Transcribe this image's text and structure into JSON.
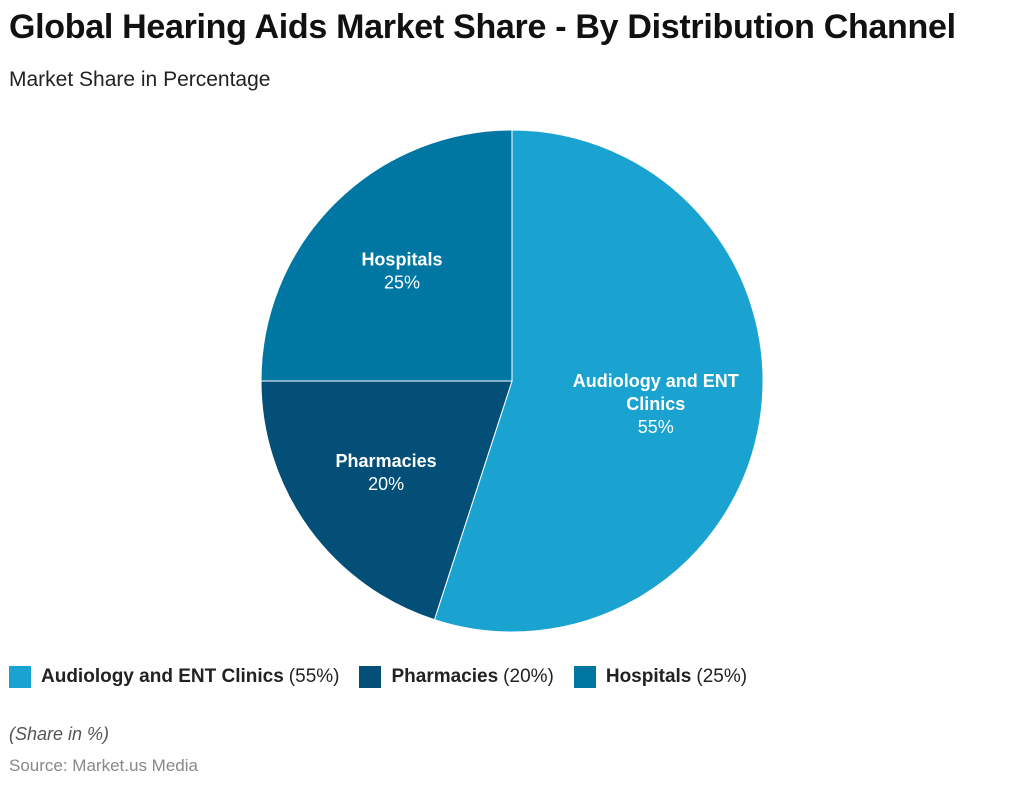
{
  "chart_data": {
    "type": "pie",
    "title": "Global Hearing Aids Market Share - By Distribution Channel",
    "subtitle": "Market Share in Percentage",
    "slices": [
      {
        "label": "Audiology and ENT Clinics",
        "label_lines": [
          "Audiology and ENT",
          "Clinics"
        ],
        "value": 55,
        "value_label": "55%",
        "legend_value": "(55%)",
        "color": "#1aa3d0"
      },
      {
        "label": "Pharmacies",
        "label_lines": [
          "Pharmacies"
        ],
        "value": 20,
        "value_label": "20%",
        "legend_value": "(20%)",
        "color": "#034f78"
      },
      {
        "label": "Hospitals",
        "label_lines": [
          "Hospitals"
        ],
        "value": 25,
        "value_label": "25%",
        "legend_value": "(25%)",
        "color": "#0077a3"
      }
    ],
    "start_angle": "top, clockwise",
    "legend_position": "bottom-left",
    "note": "(Share in %)",
    "source": "Source: Market.us Media"
  }
}
